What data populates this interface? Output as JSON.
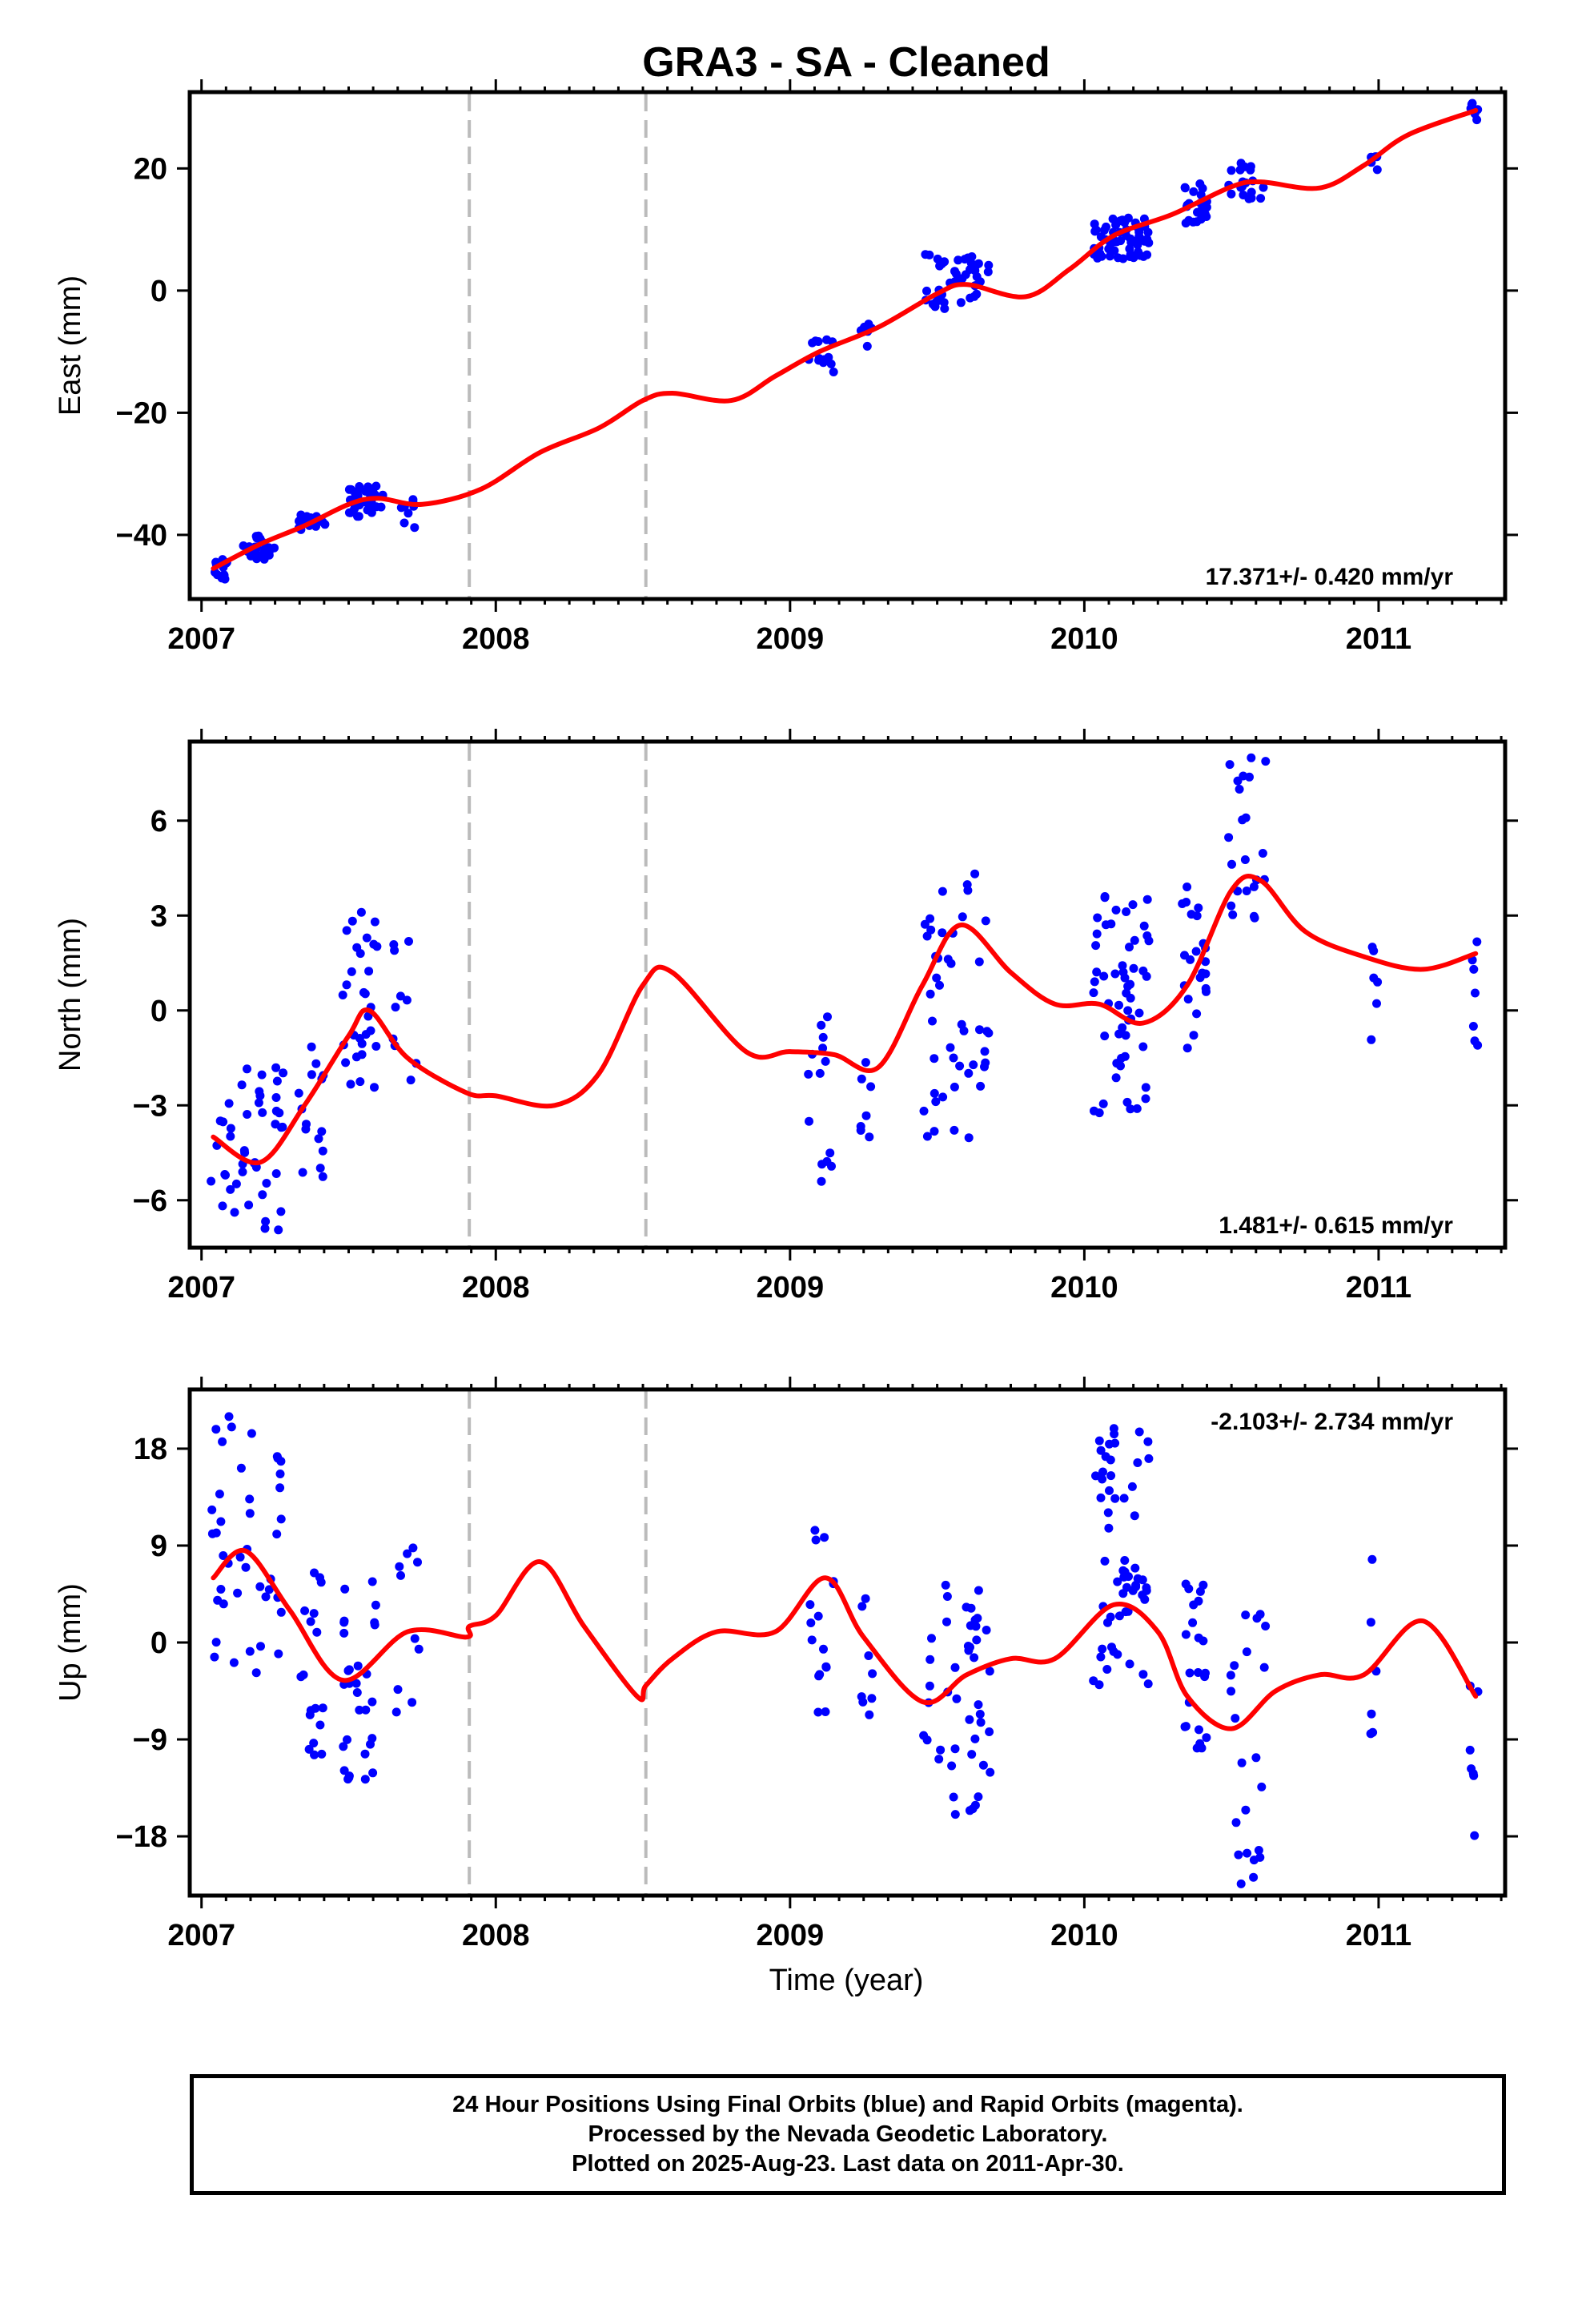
{
  "title": "GRA3  - SA - Cleaned",
  "colors": {
    "points": "#0000ff",
    "fit": "#ff0000",
    "event_lines": "#bbbbbb",
    "frame": "#000000"
  },
  "xlabel": "Time (year)",
  "x_tick_labels": [
    "2007",
    "2008",
    "2009",
    "2010",
    "2011"
  ],
  "caption": [
    "24 Hour Positions Using Final Orbits (blue) and Rapid Orbits (magenta).",
    "Processed by the Nevada Geodetic Laboratory.",
    "Plotted on 2025-Aug-23. Last data on 2011-Apr-30."
  ],
  "chart_data": [
    {
      "type": "scatter",
      "panel": "east",
      "ylabel": "East (mm)",
      "rate_label": "17.371+/- 0.420 mm/yr",
      "rate_position": "bottom-right",
      "xlim": [
        2006.96,
        2011.43
      ],
      "ylim": [
        -50.5,
        32.5
      ],
      "yticks": [
        20,
        0,
        -20,
        -40
      ],
      "ytick_labels": [
        "20",
        "0",
        "−20",
        "−40"
      ],
      "event_lines": [
        2007.91,
        2008.51
      ],
      "clusters": [
        {
          "x": [
            2007.04,
            2007.09
          ],
          "y": [
            -48,
            -44
          ],
          "n": 14
        },
        {
          "x": [
            2007.14,
            2007.25
          ],
          "y": [
            -44,
            -40
          ],
          "n": 28
        },
        {
          "x": [
            2007.33,
            2007.42
          ],
          "y": [
            -40,
            -36.5
          ],
          "n": 16
        },
        {
          "x": [
            2007.49,
            2007.62
          ],
          "y": [
            -37,
            -32
          ],
          "n": 34
        },
        {
          "x": [
            2007.67,
            2007.74
          ],
          "y": [
            -39,
            -32
          ],
          "n": 8
        },
        {
          "x": [
            2009.06,
            2009.15
          ],
          "y": [
            -13.5,
            -8
          ],
          "n": 14
        },
        {
          "x": [
            2009.24,
            2009.28
          ],
          "y": [
            -9.5,
            -5
          ],
          "n": 6
        },
        {
          "x": [
            2009.45,
            2009.68
          ],
          "y": [
            -3,
            6
          ],
          "n": 42
        },
        {
          "x": [
            2010.03,
            2010.22
          ],
          "y": [
            5,
            12
          ],
          "n": 60
        },
        {
          "x": [
            2010.33,
            2010.42
          ],
          "y": [
            11,
            18
          ],
          "n": 22
        },
        {
          "x": [
            2010.49,
            2010.62
          ],
          "y": [
            15,
            21
          ],
          "n": 20
        },
        {
          "x": [
            2010.97,
            2011.0
          ],
          "y": [
            19,
            22.5
          ],
          "n": 5
        },
        {
          "x": [
            2011.31,
            2011.34
          ],
          "y": [
            27.5,
            31
          ],
          "n": 6
        }
      ],
      "fit": {
        "x": [
          2007.04,
          2007.2,
          2007.35,
          2007.5,
          2007.6,
          2007.75,
          2007.95,
          2008.15,
          2008.35,
          2008.5,
          2008.6,
          2008.8,
          2008.95,
          2009.1,
          2009.3,
          2009.5,
          2009.6,
          2009.8,
          2009.95,
          2010.1,
          2010.3,
          2010.5,
          2010.6,
          2010.8,
          2010.95,
          2011.1,
          2011.33
        ],
        "y": [
          -45.5,
          -41.5,
          -38.5,
          -35,
          -34,
          -35,
          -32.5,
          -26.5,
          -22.5,
          -18,
          -16.8,
          -18,
          -14,
          -10,
          -6,
          -0.5,
          1,
          -1,
          3.5,
          9,
          12.5,
          17,
          17.8,
          16.8,
          20.5,
          25.5,
          29.5
        ]
      }
    },
    {
      "type": "scatter",
      "panel": "north",
      "ylabel": "North (mm)",
      "rate_label": "1.481+/- 0.615 mm/yr",
      "rate_position": "bottom-right",
      "xlim": [
        2006.96,
        2011.43
      ],
      "ylim": [
        -7.5,
        8.5
      ],
      "yticks": [
        6,
        3,
        0,
        -3,
        -6
      ],
      "ytick_labels": [
        "6",
        "3",
        "0",
        "−3",
        "−6"
      ],
      "event_lines": [
        2007.91,
        2008.51
      ],
      "clusters": [
        {
          "x": [
            2007.03,
            2007.28
          ],
          "y": [
            -7,
            -1.8
          ],
          "n": 45
        },
        {
          "x": [
            2007.32,
            2007.42
          ],
          "y": [
            -5.5,
            -1
          ],
          "n": 15
        },
        {
          "x": [
            2007.48,
            2007.6
          ],
          "y": [
            -2.5,
            3.8
          ],
          "n": 30
        },
        {
          "x": [
            2007.65,
            2007.74
          ],
          "y": [
            -2.5,
            2.5
          ],
          "n": 10
        },
        {
          "x": [
            2009.06,
            2009.15
          ],
          "y": [
            -5.6,
            0.5
          ],
          "n": 14
        },
        {
          "x": [
            2009.24,
            2009.28
          ],
          "y": [
            -4,
            -0.8
          ],
          "n": 7
        },
        {
          "x": [
            2009.45,
            2009.68
          ],
          "y": [
            -4.2,
            4.7
          ],
          "n": 45
        },
        {
          "x": [
            2010.03,
            2010.22
          ],
          "y": [
            -3.5,
            3.8
          ],
          "n": 55
        },
        {
          "x": [
            2010.33,
            2010.42
          ],
          "y": [
            -1.2,
            4.2
          ],
          "n": 22
        },
        {
          "x": [
            2010.49,
            2010.62
          ],
          "y": [
            2.5,
            8.2
          ],
          "n": 22
        },
        {
          "x": [
            2010.97,
            2011.0
          ],
          "y": [
            -1.5,
            3.2
          ],
          "n": 6
        },
        {
          "x": [
            2011.31,
            2011.34
          ],
          "y": [
            -1.3,
            2.7
          ],
          "n": 7
        }
      ],
      "fit": {
        "x": [
          2007.04,
          2007.2,
          2007.35,
          2007.5,
          2007.57,
          2007.7,
          2007.9,
          2008.0,
          2008.2,
          2008.35,
          2008.5,
          2008.6,
          2008.85,
          2009.0,
          2009.15,
          2009.3,
          2009.45,
          2009.58,
          2009.75,
          2009.9,
          2010.05,
          2010.2,
          2010.35,
          2010.5,
          2010.6,
          2010.75,
          2010.95,
          2011.15,
          2011.33
        ],
        "y": [
          -4,
          -4.8,
          -3,
          -0.8,
          0,
          -1.5,
          -2.6,
          -2.7,
          -3,
          -2,
          0.8,
          1.2,
          -1.3,
          -1.3,
          -1.4,
          -1.8,
          0.8,
          2.7,
          1.2,
          0.2,
          0.2,
          -0.4,
          0.8,
          3.8,
          4.1,
          2.5,
          1.7,
          1.3,
          1.8
        ]
      }
    },
    {
      "type": "scatter",
      "panel": "up",
      "ylabel": "Up (mm)",
      "rate_label": "-2.103+/- 2.734 mm/yr",
      "rate_position": "top-right",
      "xlim": [
        2006.96,
        2011.43
      ],
      "ylim": [
        -23.5,
        23.5
      ],
      "yticks": [
        18,
        9,
        0,
        -9,
        -18
      ],
      "ytick_labels": [
        "18",
        "9",
        "0",
        "−9",
        "−18"
      ],
      "event_lines": [
        2007.91,
        2008.51
      ],
      "clusters": [
        {
          "x": [
            2007.03,
            2007.28
          ],
          "y": [
            -3,
            22
          ],
          "n": 42
        },
        {
          "x": [
            2007.32,
            2007.42
          ],
          "y": [
            -10.5,
            7
          ],
          "n": 18
        },
        {
          "x": [
            2007.48,
            2007.6
          ],
          "y": [
            -13,
            6
          ],
          "n": 30
        },
        {
          "x": [
            2007.65,
            2007.74
          ],
          "y": [
            -7,
            10
          ],
          "n": 10
        },
        {
          "x": [
            2009.06,
            2009.15
          ],
          "y": [
            -8.5,
            10.5
          ],
          "n": 16
        },
        {
          "x": [
            2009.24,
            2009.28
          ],
          "y": [
            -7.5,
            5.5
          ],
          "n": 8
        },
        {
          "x": [
            2009.45,
            2009.68
          ],
          "y": [
            -16,
            7.5
          ],
          "n": 45
        },
        {
          "x": [
            2010.03,
            2010.22
          ],
          "y": [
            -4,
            22
          ],
          "n": 60
        },
        {
          "x": [
            2010.33,
            2010.42
          ],
          "y": [
            -10,
            5.5
          ],
          "n": 22
        },
        {
          "x": [
            2010.49,
            2010.62
          ],
          "y": [
            -23,
            3.5
          ],
          "n": 22
        },
        {
          "x": [
            2010.97,
            2011.0
          ],
          "y": [
            -8.5,
            8.5
          ],
          "n": 6
        },
        {
          "x": [
            2011.31,
            2011.34
          ],
          "y": [
            -18,
            -2
          ],
          "n": 7
        }
      ],
      "fit": {
        "x": [
          2007.04,
          2007.15,
          2007.3,
          2007.48,
          2007.7,
          2007.9,
          2007.91,
          2008.0,
          2008.15,
          2008.3,
          2008.48,
          2008.51,
          2008.6,
          2008.75,
          2008.95,
          2009.12,
          2009.25,
          2009.45,
          2009.6,
          2009.75,
          2009.9,
          2010.1,
          2010.25,
          2010.35,
          2010.5,
          2010.65,
          2010.8,
          2010.95,
          2011.15,
          2011.33
        ],
        "y": [
          6,
          8.5,
          3,
          -3.5,
          1,
          0.5,
          1.5,
          2.5,
          7.5,
          1.5,
          -5,
          -4,
          -1.5,
          1,
          1,
          6,
          0.5,
          -5.5,
          -3,
          -1.5,
          -1.5,
          3.5,
          1,
          -5,
          -8,
          -4.5,
          -3,
          -3,
          2,
          -5
        ]
      }
    }
  ]
}
